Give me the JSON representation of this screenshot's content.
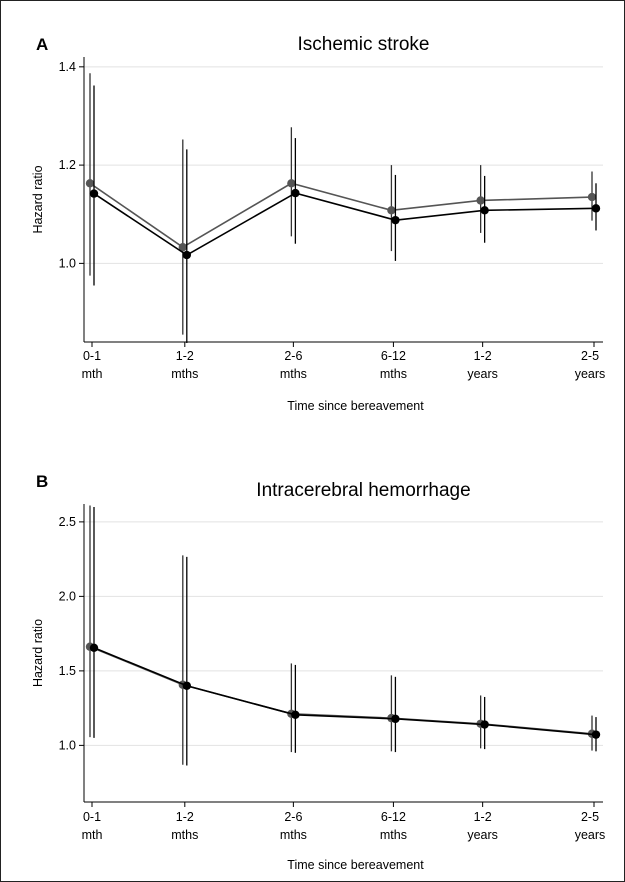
{
  "chart_data": [
    {
      "type": "line",
      "panel": "A",
      "title": "Ischemic stroke",
      "xlabel": "Time since bereavement",
      "ylabel": "Hazard ratio",
      "categories": [
        [
          "0-1",
          "mth"
        ],
        [
          "1-2",
          "mths"
        ],
        [
          "2-6",
          "mths"
        ],
        [
          "6-12",
          "mths"
        ],
        [
          "1-2",
          "years"
        ],
        [
          "2-5",
          "years"
        ]
      ],
      "x_positions": [
        0.5,
        1.5,
        4,
        9,
        18,
        42
      ],
      "yticks": [
        1.0,
        1.2,
        1.4
      ],
      "ylim": [
        0.84,
        1.42
      ],
      "grid": true,
      "series": [
        {
          "color": "#555555",
          "values": [
            1.163,
            1.033,
            1.163,
            1.108,
            1.128,
            1.135
          ],
          "lower": [
            0.975,
            0.855,
            1.055,
            1.025,
            1.062,
            1.087
          ],
          "upper": [
            1.387,
            1.252,
            1.277,
            1.2,
            1.2,
            1.187
          ]
        },
        {
          "color": "#000000",
          "values": [
            1.142,
            1.017,
            1.143,
            1.088,
            1.108,
            1.112
          ],
          "lower": [
            0.955,
            0.838,
            1.04,
            1.005,
            1.042,
            1.067
          ],
          "upper": [
            1.362,
            1.232,
            1.255,
            1.18,
            1.178,
            1.163
          ]
        }
      ]
    },
    {
      "type": "line",
      "panel": "B",
      "title": "Intracerebral hemorrhage",
      "xlabel": "Time since bereavement",
      "ylabel": "Hazard ratio",
      "categories": [
        [
          "0-1",
          "mth"
        ],
        [
          "1-2",
          "mths"
        ],
        [
          "2-6",
          "mths"
        ],
        [
          "6-12",
          "mths"
        ],
        [
          "1-2",
          "years"
        ],
        [
          "2-5",
          "years"
        ]
      ],
      "x_positions": [
        0.5,
        1.5,
        4,
        9,
        18,
        42
      ],
      "yticks": [
        1.0,
        1.5,
        2.0,
        2.5
      ],
      "ylim": [
        0.62,
        2.62
      ],
      "grid": true,
      "series": [
        {
          "color": "#555555",
          "values": [
            1.662,
            1.407,
            1.212,
            1.183,
            1.145,
            1.078
          ],
          "lower": [
            1.055,
            0.87,
            0.955,
            0.96,
            0.98,
            0.965
          ],
          "upper": [
            2.61,
            2.275,
            1.55,
            1.47,
            1.335,
            1.2
          ]
        },
        {
          "color": "#000000",
          "values": [
            1.655,
            1.4,
            1.205,
            1.178,
            1.14,
            1.072
          ],
          "lower": [
            1.05,
            0.865,
            0.95,
            0.955,
            0.975,
            0.96
          ],
          "upper": [
            2.6,
            2.265,
            1.54,
            1.46,
            1.325,
            1.19
          ]
        }
      ]
    }
  ]
}
